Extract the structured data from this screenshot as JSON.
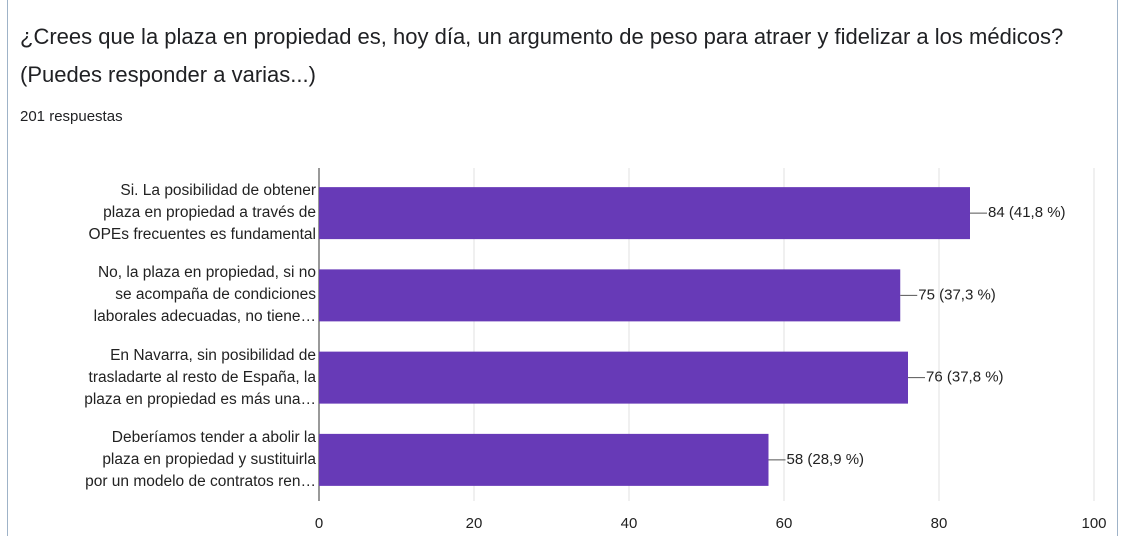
{
  "chart_data": {
    "type": "bar",
    "orientation": "horizontal",
    "title": "¿Crees que la plaza en propiedad es, hoy día, un argumento de peso para atraer y fidelizar a los médicos? (Puedes responder a varias...)",
    "subtitle": "201 respuestas",
    "categories": [
      "Si. La posibilidad de obtener\nplaza en propiedad a través de\nOPEs frecuentes es fundamental",
      "No, la plaza en propiedad, si no\nse acompaña de condiciones\nlaborales adecuadas, no tiene…",
      "En Navarra, sin posibilidad de\ntrasladarte al resto de España, la\nplaza en propiedad es más una…",
      "Deberíamos tender a abolir la\nplaza en propiedad y sustituirla\npor un modelo de contratos ren…"
    ],
    "values": [
      84,
      75,
      76,
      58
    ],
    "value_labels": [
      "84 (41,8 %)",
      "75 (37,3 %)",
      "76 (37,8 %)",
      "58 (28,9 %)"
    ],
    "color": "#673ab7",
    "xlim": [
      0,
      100
    ],
    "xticks": [
      0,
      20,
      40,
      60,
      80,
      100
    ],
    "grid": true
  }
}
